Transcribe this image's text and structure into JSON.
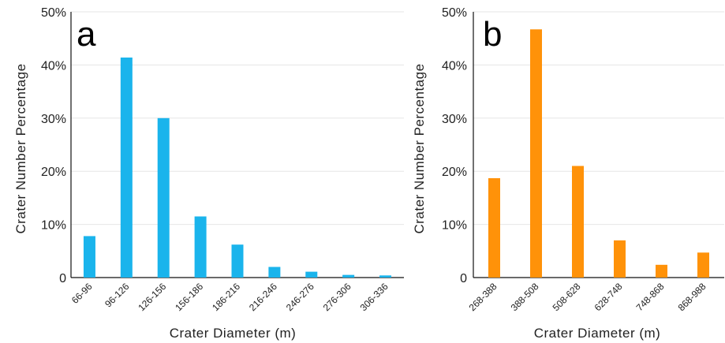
{
  "chart_data": [
    {
      "type": "bar",
      "panel_label": "a",
      "categories": [
        "66-96",
        "96-126",
        "126-156",
        "156-186",
        "186-216",
        "216-246",
        "246-276",
        "276-306",
        "306-336"
      ],
      "values": [
        7.8,
        41.4,
        30.0,
        11.5,
        6.2,
        2.0,
        1.1,
        0.5,
        0.4
      ],
      "xlabel": "Crater Diameter (m)",
      "ylabel": "Crater Number Percentage",
      "ylim": [
        0,
        50
      ],
      "yticks": [
        "0",
        "10%",
        "20%",
        "30%",
        "40%",
        "50%"
      ],
      "grid": true,
      "color": "#1ab4ec"
    },
    {
      "type": "bar",
      "panel_label": "b",
      "categories": [
        "268-388",
        "388-508",
        "508-628",
        "628-748",
        "748-868",
        "868-988"
      ],
      "values": [
        18.7,
        46.7,
        21.0,
        7.0,
        2.4,
        4.7
      ],
      "xlabel": "Crater Diameter (m)",
      "ylabel": "Crater Number Percentage",
      "ylim": [
        0,
        50
      ],
      "yticks": [
        "0",
        "10%",
        "20%",
        "30%",
        "40%",
        "50%"
      ],
      "grid": true,
      "color": "#ff9209"
    }
  ]
}
